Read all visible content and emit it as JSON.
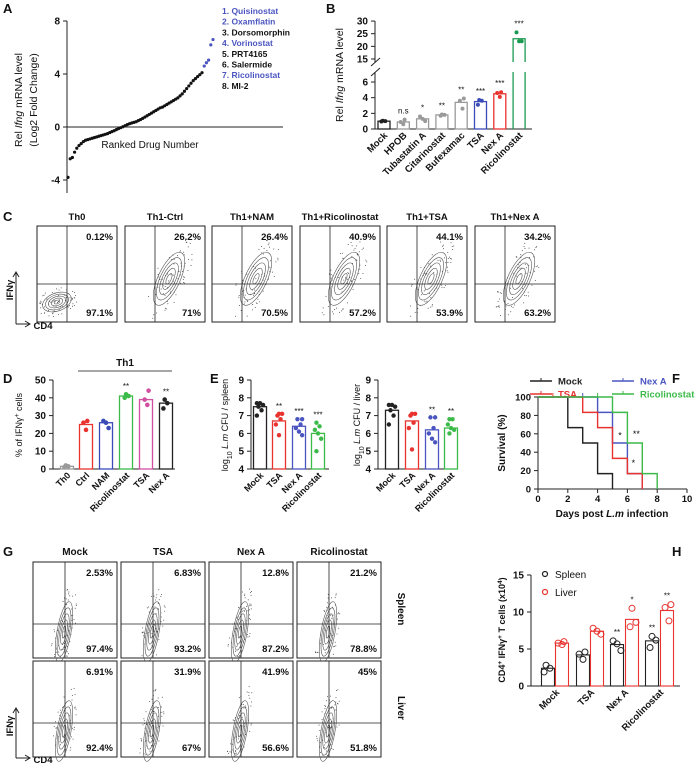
{
  "figure": {
    "panel_labels": [
      "A",
      "B",
      "C",
      "D",
      "E",
      "F",
      "G",
      "H"
    ]
  },
  "chart_data": [
    {
      "panel": "A",
      "type": "scatter",
      "ylabel": [
        "Rel ",
        "Ifng",
        " mRNA level"
      ],
      "ylabel2": "(Log2 Fold Change)",
      "xlabel": "Ranked Drug Number",
      "yticks": [
        8,
        4,
        0,
        -4
      ],
      "ylim": [
        -5,
        8
      ],
      "values": [
        -3.8,
        -2.4,
        -2.3,
        -1.9,
        -1.6,
        -1.4,
        -1.25,
        -1.1,
        -1.0,
        -0.95,
        -0.9,
        -0.85,
        -0.8,
        -0.75,
        -0.7,
        -0.65,
        -0.6,
        -0.55,
        -0.5,
        -0.42,
        -0.35,
        -0.28,
        -0.2,
        -0.12,
        -0.05,
        0.02,
        0.1,
        0.18,
        0.25,
        0.3,
        0.35,
        0.4,
        0.48,
        0.56,
        0.65,
        0.75,
        0.85,
        0.95,
        1.05,
        1.15,
        1.25,
        1.35,
        1.45,
        1.5,
        1.6,
        1.7,
        1.8,
        1.9,
        2.0,
        2.1,
        2.2,
        2.35,
        2.5,
        2.7,
        2.9,
        3.1,
        3.3,
        3.5,
        3.65,
        3.8,
        3.95,
        4.1,
        4.6,
        4.85,
        5.05,
        6.2,
        6.6
      ],
      "highlight_count": 5,
      "highlight_color": "#4a55c0",
      "legend": [
        {
          "text": "1. Quisinostat",
          "highlight": true
        },
        {
          "text": "2. Oxamflatin",
          "highlight": true
        },
        {
          "text": "3. Dorsomorphin",
          "highlight": false
        },
        {
          "text": "4. Vorinostat",
          "highlight": true
        },
        {
          "text": "5. PRT4165",
          "highlight": false
        },
        {
          "text": "6. Salermide",
          "highlight": false
        },
        {
          "text": "7. Ricolinostat",
          "highlight": true
        },
        {
          "text": "8. MI-2",
          "highlight": false
        }
      ]
    },
    {
      "panel": "B",
      "type": "bar",
      "ylabel": [
        "Rel ",
        "Ifng",
        " mRNA level"
      ],
      "yticks_low": [
        0,
        2,
        4,
        6
      ],
      "yticks_high": [
        15,
        20,
        25,
        30
      ],
      "axis_break": [
        7,
        15
      ],
      "categories": [
        "Mock",
        "HPOB",
        "Tubastatin A",
        "Citarinostat",
        "Bufexamac",
        "TSA",
        "Nex A",
        "Ricolinostat"
      ],
      "values": [
        1.0,
        0.9,
        1.3,
        1.8,
        3.4,
        3.5,
        4.5,
        23
      ],
      "points": [
        [
          0.95,
          1.0,
          1.05
        ],
        [
          0.6,
          0.9,
          1.2
        ],
        [
          1.0,
          1.3,
          1.6
        ],
        [
          1.7,
          1.8,
          1.85
        ],
        [
          2.6,
          3.6,
          3.9
        ],
        [
          3.1,
          3.6,
          3.7
        ],
        [
          4.1,
          4.6,
          4.7
        ],
        [
          22,
          22,
          25.5
        ]
      ],
      "significance": [
        "",
        "n.s",
        "*",
        "**",
        "**",
        "***",
        "***",
        "***"
      ],
      "colors": [
        "#222222",
        "#9a9a9a",
        "#9a9a9a",
        "#9a9a9a",
        "#9a9a9a",
        "#3b4bb8",
        "#e8332f",
        "#1a9a50"
      ]
    },
    {
      "panel": "C",
      "type": "flow_cytometry",
      "y_axis": "IFNγ",
      "x_axis": "CD4",
      "plots": [
        {
          "title": "Th0",
          "upper_right": "0.12%",
          "lower_right": "97.1%"
        },
        {
          "title": "Th1-Ctrl",
          "upper_right": "26.2%",
          "lower_right": "71%"
        },
        {
          "title": "Th1+NAM",
          "upper_right": "26.4%",
          "lower_right": "70.5%"
        },
        {
          "title": "Th1+Ricolinostat",
          "upper_right": "40.9%",
          "lower_right": "57.2%"
        },
        {
          "title": "Th1+TSA",
          "upper_right": "44.1%",
          "lower_right": "53.9%"
        },
        {
          "title": "Th1+Nex A",
          "upper_right": "34.2%",
          "lower_right": "63.2%"
        }
      ]
    },
    {
      "panel": "D",
      "type": "bar",
      "ylabel": [
        "% of IFNγ",
        "+",
        " cells"
      ],
      "group_label": "Th1",
      "yticks": [
        0,
        10,
        20,
        30,
        40,
        50
      ],
      "ylim": [
        0,
        50
      ],
      "categories": [
        "Th0",
        "Ctrl",
        "NAM",
        "Ricolinostat",
        "TSA",
        "Nex A"
      ],
      "values": [
        1.5,
        25,
        26,
        41,
        39,
        37
      ],
      "points": [
        [
          1,
          1.5,
          2
        ],
        [
          22,
          26,
          27
        ],
        [
          23,
          26,
          27
        ],
        [
          40,
          41,
          42
        ],
        [
          36,
          39,
          44
        ],
        [
          34,
          37,
          39
        ]
      ],
      "significance": [
        "",
        "",
        "",
        "**",
        "",
        "**"
      ],
      "colors": [
        "#9a9a9a",
        "#e8332f",
        "#3b4bb8",
        "#3cba4a",
        "#d14fa0",
        "#222222"
      ]
    },
    {
      "panel": "E",
      "type": "bar",
      "ylabel": [
        "log",
        "10",
        " ",
        "L.m",
        " CFU / spleen"
      ],
      "yticks": [
        4,
        5,
        6,
        7,
        8,
        9
      ],
      "ylim": [
        4,
        9
      ],
      "categories": [
        "Mock",
        "TSA",
        "Nex A",
        "Ricolinostat"
      ],
      "values": [
        7.5,
        6.7,
        6.4,
        6.0
      ],
      "points": [
        [
          7.0,
          7.3,
          7.5,
          7.6,
          7.7,
          7.7
        ],
        [
          5.9,
          6.5,
          6.8,
          7.0,
          7.1,
          7.1
        ],
        [
          5.9,
          6.1,
          6.3,
          6.5,
          6.8,
          6.8
        ],
        [
          5.0,
          5.7,
          6.0,
          6.2,
          6.4,
          6.6
        ]
      ],
      "significance": [
        "",
        "**",
        "***",
        "***"
      ],
      "colors": [
        "#222222",
        "#e8332f",
        "#4a55c0",
        "#3cba4a"
      ]
    },
    {
      "panel": "E",
      "type": "bar",
      "ylabel": [
        "log",
        "10",
        " ",
        "L.m",
        " CFU / liver"
      ],
      "yticks": [
        4,
        5,
        6,
        7,
        8,
        9
      ],
      "ylim": [
        4,
        9
      ],
      "categories": [
        "Mock",
        "TSA",
        "Nex A",
        "Ricolinostat"
      ],
      "values": [
        7.3,
        6.7,
        6.2,
        6.3
      ],
      "points": [
        [
          6.5,
          7.0,
          7.3,
          7.5,
          7.6,
          7.6
        ],
        [
          5.1,
          6.3,
          6.6,
          7.0,
          7.1,
          7.1
        ],
        [
          5.5,
          5.7,
          6.0,
          6.3,
          6.9,
          6.9
        ],
        [
          6.0,
          6.2,
          6.3,
          6.5,
          6.8,
          6.8
        ]
      ],
      "significance": [
        "",
        "",
        "**",
        "**"
      ],
      "colors": [
        "#222222",
        "#e8332f",
        "#4a55c0",
        "#3cba4a"
      ]
    },
    {
      "panel": "F",
      "type": "line",
      "ylabel": "Survival (%)",
      "xlabel": [
        "Days post ",
        "L.m",
        " infection"
      ],
      "xticks": [
        0,
        2,
        4,
        6,
        8,
        10
      ],
      "yticks": [
        0,
        20,
        40,
        60,
        80,
        100
      ],
      "xlim": [
        0,
        10
      ],
      "ylim": [
        0,
        100
      ],
      "legend_position": "top",
      "series": [
        {
          "name": "Mock",
          "color": "#222222",
          "times": [
            0,
            2,
            3,
            4,
            5
          ],
          "survival": [
            100,
            66.7,
            50,
            16.7,
            0
          ],
          "censored": []
        },
        {
          "name": "Nex A",
          "color": "#4a55c0",
          "times": [
            0,
            4,
            5,
            6,
            7
          ],
          "survival": [
            100,
            83.3,
            50,
            16.7,
            0
          ],
          "censored": [
            3
          ]
        },
        {
          "name": "TSA",
          "color": "#e8332f",
          "times": [
            0,
            3,
            4,
            5,
            6,
            7
          ],
          "survival": [
            100,
            83.3,
            66.7,
            33.3,
            16.7,
            0
          ],
          "censored": [
            1
          ]
        },
        {
          "name": "Ricolinostat",
          "color": "#3cba4a",
          "times": [
            0,
            5,
            6,
            7,
            8
          ],
          "survival": [
            100,
            83.3,
            50,
            16.7,
            0
          ],
          "censored": [
            4
          ]
        }
      ],
      "annotations": [
        {
          "text": "*",
          "x": 5.5,
          "y": 58
        },
        {
          "text": "**",
          "x": 6.6,
          "y": 60
        },
        {
          "text": "*",
          "x": 6.4,
          "y": 28
        }
      ]
    },
    {
      "panel": "G",
      "type": "flow_cytometry",
      "y_axis": "IFNγ",
      "x_axis": "CD4",
      "columns": [
        "Mock",
        "TSA",
        "Nex A",
        "Ricolinostat"
      ],
      "rows": [
        "Spleen",
        "Liver"
      ],
      "values": [
        [
          {
            "upper_right": "2.53%",
            "lower_right": "97.4%"
          },
          {
            "upper_right": "6.83%",
            "lower_right": "93.2%"
          },
          {
            "upper_right": "12.8%",
            "lower_right": "87.2%"
          },
          {
            "upper_right": "21.2%",
            "lower_right": "78.8%"
          }
        ],
        [
          {
            "upper_right": "6.91%",
            "lower_right": "92.4%"
          },
          {
            "upper_right": "31.9%",
            "lower_right": "67%"
          },
          {
            "upper_right": "41.9%",
            "lower_right": "56.6%"
          },
          {
            "upper_right": "45%",
            "lower_right": "51.8%"
          }
        ]
      ]
    },
    {
      "panel": "H",
      "type": "bar",
      "ylabel": [
        "CD4",
        "+",
        " IFNγ",
        "+",
        " T cells (x10",
        "4",
        ")"
      ],
      "yticks": [
        0,
        5,
        10,
        15
      ],
      "ylim": [
        0,
        15
      ],
      "legend_position": "top-left",
      "categories": [
        "Mock",
        "TSA",
        "Nex A",
        "Ricolinostat"
      ],
      "series": [
        {
          "name": "Spleen",
          "color": "#222222",
          "values": [
            2.4,
            4.2,
            5.6,
            6.1
          ],
          "points": [
            [
              1.9,
              2.4,
              2.8
            ],
            [
              3.6,
              4.3,
              4.6
            ],
            [
              4.8,
              5.7,
              6.1
            ],
            [
              5.2,
              6.2,
              6.7
            ]
          ],
          "significance": [
            "",
            "",
            "**",
            "**"
          ]
        },
        {
          "name": "Liver",
          "color": "#e8332f",
          "values": [
            5.8,
            7.4,
            9.0,
            10.2
          ],
          "points": [
            [
              5.6,
              5.8,
              6.0
            ],
            [
              7.0,
              7.4,
              7.8
            ],
            [
              8.0,
              8.6,
              10.5
            ],
            [
              8.8,
              10.6,
              11.0
            ]
          ],
          "significance": [
            "",
            "",
            "*",
            "**"
          ]
        }
      ]
    }
  ]
}
